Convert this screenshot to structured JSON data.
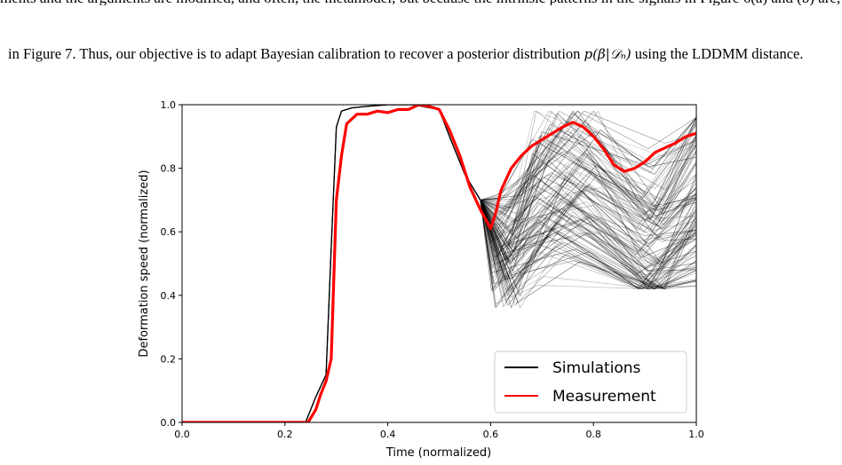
{
  "paragraph": {
    "text_before": "in Figure 7. Thus, our objective is to adapt Bayesian calibration to recover a posterior distribution ",
    "math": "p(β|𝒟ₙ)",
    "text_after": " using the LDDMM distance."
  },
  "chart_data": {
    "type": "line",
    "title": "",
    "xlabel": "Time (normalized)",
    "ylabel": "Deformation speed (normalized)",
    "xlim": [
      0.0,
      1.0
    ],
    "ylim": [
      0.0,
      1.0
    ],
    "xticks": [
      "0.0",
      "0.2",
      "0.4",
      "0.6",
      "0.8",
      "1.0"
    ],
    "yticks": [
      "0.0",
      "0.2",
      "0.4",
      "0.6",
      "0.8",
      "1.0"
    ],
    "grid": false,
    "legend_position": "bottom-right",
    "legend": [
      "Simulations",
      "Measurement"
    ],
    "colors": {
      "simulations": "#000000",
      "measurement": "#ff0000"
    },
    "series": [
      {
        "name": "Simulations",
        "x": [
          0.0,
          0.24,
          0.26,
          0.28,
          0.29,
          0.3,
          0.31,
          0.33,
          0.36,
          0.4,
          0.45,
          0.5,
          0.52,
          0.55,
          0.58
        ],
        "y": [
          0.0,
          0.0,
          0.08,
          0.15,
          0.55,
          0.93,
          0.98,
          0.99,
          0.995,
          1.0,
          1.0,
          0.985,
          0.9,
          0.78,
          0.7
        ]
      },
      {
        "name": "Measurement",
        "x": [
          0.0,
          0.245,
          0.26,
          0.27,
          0.28,
          0.29,
          0.3,
          0.31,
          0.32,
          0.34,
          0.36,
          0.38,
          0.4,
          0.42,
          0.44,
          0.46,
          0.48,
          0.5,
          0.52,
          0.54,
          0.56,
          0.58,
          0.6,
          0.61,
          0.62,
          0.64,
          0.66,
          0.68,
          0.7,
          0.72,
          0.74,
          0.76,
          0.78,
          0.8,
          0.82,
          0.84,
          0.86,
          0.88,
          0.9,
          0.92,
          0.94,
          0.96,
          0.98,
          1.0
        ],
        "y": [
          0.0,
          0.0,
          0.04,
          0.09,
          0.13,
          0.2,
          0.7,
          0.84,
          0.94,
          0.97,
          0.97,
          0.98,
          0.975,
          0.985,
          0.985,
          1.0,
          0.995,
          0.985,
          0.92,
          0.84,
          0.74,
          0.67,
          0.61,
          0.66,
          0.73,
          0.8,
          0.84,
          0.87,
          0.89,
          0.91,
          0.93,
          0.945,
          0.93,
          0.9,
          0.86,
          0.81,
          0.79,
          0.8,
          0.82,
          0.85,
          0.865,
          0.88,
          0.9,
          0.91
        ]
      }
    ]
  }
}
